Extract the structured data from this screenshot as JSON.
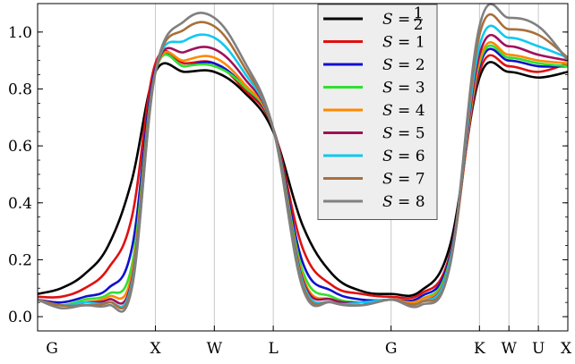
{
  "chart_data": {
    "type": "line",
    "title": "",
    "xlabel": "",
    "ylabel": "",
    "ylim": [
      -0.05,
      1.1
    ],
    "x_tick_labels": [
      "G",
      "X",
      "W",
      "L",
      "G",
      "K",
      "W",
      "U",
      "X"
    ],
    "x_tick_positions": [
      0,
      1,
      1.5,
      2,
      3,
      3.75,
      4,
      4.25,
      4.5
    ],
    "y_ticks": [
      0.0,
      0.2,
      0.4,
      0.6,
      0.8,
      1.0
    ],
    "y_tick_labels": [
      "0.0",
      "0.2",
      "0.4",
      "0.6",
      "0.8",
      "1.0"
    ],
    "grid": "vertical lines at high-symmetry points",
    "legend_position": "top-center",
    "legend_symbol": "S",
    "series": [
      {
        "name": "S = 1/2",
        "legend_value": "1/2",
        "color": "#000000",
        "x": [
          0,
          0.2,
          0.4,
          0.6,
          0.8,
          1.0,
          1.25,
          1.5,
          1.75,
          2.0,
          2.25,
          2.5,
          2.75,
          3.0,
          3.25,
          3.5,
          3.75,
          4.0,
          4.25,
          4.5
        ],
        "y": [
          0.08,
          0.1,
          0.15,
          0.25,
          0.48,
          0.86,
          0.86,
          0.86,
          0.79,
          0.65,
          0.32,
          0.15,
          0.09,
          0.08,
          0.09,
          0.25,
          0.84,
          0.86,
          0.84,
          0.86
        ]
      },
      {
        "name": "S = 1",
        "legend_value": "1",
        "color": "#e01010",
        "x": [
          0,
          0.2,
          0.4,
          0.6,
          0.8,
          1.0,
          1.25,
          1.5,
          1.75,
          2.0,
          2.25,
          2.5,
          2.75,
          3.0,
          3.25,
          3.5,
          3.75,
          4.0,
          4.25,
          4.5
        ],
        "y": [
          0.07,
          0.07,
          0.1,
          0.17,
          0.35,
          0.89,
          0.89,
          0.89,
          0.8,
          0.66,
          0.24,
          0.11,
          0.08,
          0.07,
          0.08,
          0.22,
          0.86,
          0.88,
          0.86,
          0.89
        ]
      },
      {
        "name": "S = 2",
        "legend_value": "2",
        "color": "#1010d0",
        "x": [
          0,
          0.2,
          0.4,
          0.6,
          0.8,
          1.0,
          1.25,
          1.5,
          1.75,
          2.0,
          2.25,
          2.5,
          2.75,
          3.0,
          3.25,
          3.5,
          3.75,
          4.0,
          4.25,
          4.5
        ],
        "y": [
          0.06,
          0.05,
          0.07,
          0.1,
          0.24,
          0.87,
          0.88,
          0.89,
          0.81,
          0.66,
          0.19,
          0.09,
          0.06,
          0.06,
          0.07,
          0.21,
          0.88,
          0.9,
          0.88,
          0.88
        ]
      },
      {
        "name": "S = 3",
        "legend_value": "3",
        "color": "#30e030",
        "x": [
          0,
          0.2,
          0.4,
          0.6,
          0.8,
          1.0,
          1.25,
          1.5,
          1.75,
          2.0,
          2.25,
          2.5,
          2.75,
          3.0,
          3.25,
          3.5,
          3.75,
          4.0,
          4.25,
          4.5
        ],
        "y": [
          0.06,
          0.04,
          0.06,
          0.08,
          0.18,
          0.86,
          0.88,
          0.88,
          0.81,
          0.66,
          0.16,
          0.07,
          0.05,
          0.06,
          0.06,
          0.2,
          0.89,
          0.91,
          0.89,
          0.88
        ]
      },
      {
        "name": "S = 4",
        "legend_value": "4",
        "color": "#ff8800",
        "x": [
          0,
          0.2,
          0.4,
          0.6,
          0.8,
          1.0,
          1.25,
          1.5,
          1.75,
          2.0,
          2.25,
          2.5,
          2.75,
          3.0,
          3.25,
          3.5,
          3.75,
          4.0,
          4.25,
          4.5
        ],
        "y": [
          0.06,
          0.04,
          0.05,
          0.07,
          0.15,
          0.86,
          0.9,
          0.91,
          0.82,
          0.66,
          0.14,
          0.06,
          0.05,
          0.06,
          0.06,
          0.19,
          0.9,
          0.92,
          0.9,
          0.89
        ]
      },
      {
        "name": "S = 5",
        "legend_value": "5",
        "color": "#a0105a",
        "x": [
          0,
          0.2,
          0.4,
          0.6,
          0.8,
          1.0,
          1.25,
          1.5,
          1.75,
          2.0,
          2.25,
          2.5,
          2.75,
          3.0,
          3.25,
          3.5,
          3.75,
          4.0,
          4.25,
          4.5
        ],
        "y": [
          0.06,
          0.04,
          0.05,
          0.06,
          0.13,
          0.86,
          0.93,
          0.94,
          0.84,
          0.66,
          0.13,
          0.06,
          0.05,
          0.06,
          0.05,
          0.19,
          0.92,
          0.95,
          0.92,
          0.9
        ]
      },
      {
        "name": "S = 6",
        "legend_value": "6",
        "color": "#10c8f0",
        "x": [
          0,
          0.2,
          0.4,
          0.6,
          0.8,
          1.0,
          1.25,
          1.5,
          1.75,
          2.0,
          2.25,
          2.5,
          2.75,
          3.0,
          3.25,
          3.5,
          3.75,
          4.0,
          4.25,
          4.5
        ],
        "y": [
          0.06,
          0.04,
          0.05,
          0.05,
          0.12,
          0.86,
          0.97,
          0.98,
          0.86,
          0.66,
          0.12,
          0.05,
          0.05,
          0.06,
          0.05,
          0.19,
          0.95,
          0.98,
          0.95,
          0.91
        ]
      },
      {
        "name": "S = 7",
        "legend_value": "7",
        "color": "#a8703a",
        "x": [
          0,
          0.2,
          0.4,
          0.6,
          0.8,
          1.0,
          1.25,
          1.5,
          1.75,
          2.0,
          2.25,
          2.5,
          2.75,
          3.0,
          3.25,
          3.5,
          3.75,
          4.0,
          4.25,
          4.5
        ],
        "y": [
          0.06,
          0.04,
          0.04,
          0.05,
          0.11,
          0.86,
          1.01,
          1.02,
          0.88,
          0.66,
          0.11,
          0.05,
          0.04,
          0.06,
          0.05,
          0.18,
          0.99,
          1.01,
          0.99,
          0.91
        ]
      },
      {
        "name": "S = 8",
        "legend_value": "8",
        "color": "#808080",
        "x": [
          0,
          0.2,
          0.4,
          0.6,
          0.8,
          1.0,
          1.25,
          1.5,
          1.75,
          2.0,
          2.25,
          2.5,
          2.75,
          3.0,
          3.25,
          3.5,
          3.75,
          4.0,
          4.25,
          4.5
        ],
        "y": [
          0.06,
          0.03,
          0.04,
          0.04,
          0.1,
          0.86,
          1.04,
          1.05,
          0.9,
          0.66,
          0.1,
          0.05,
          0.04,
          0.06,
          0.04,
          0.18,
          1.02,
          1.05,
          1.02,
          0.9
        ]
      }
    ]
  }
}
